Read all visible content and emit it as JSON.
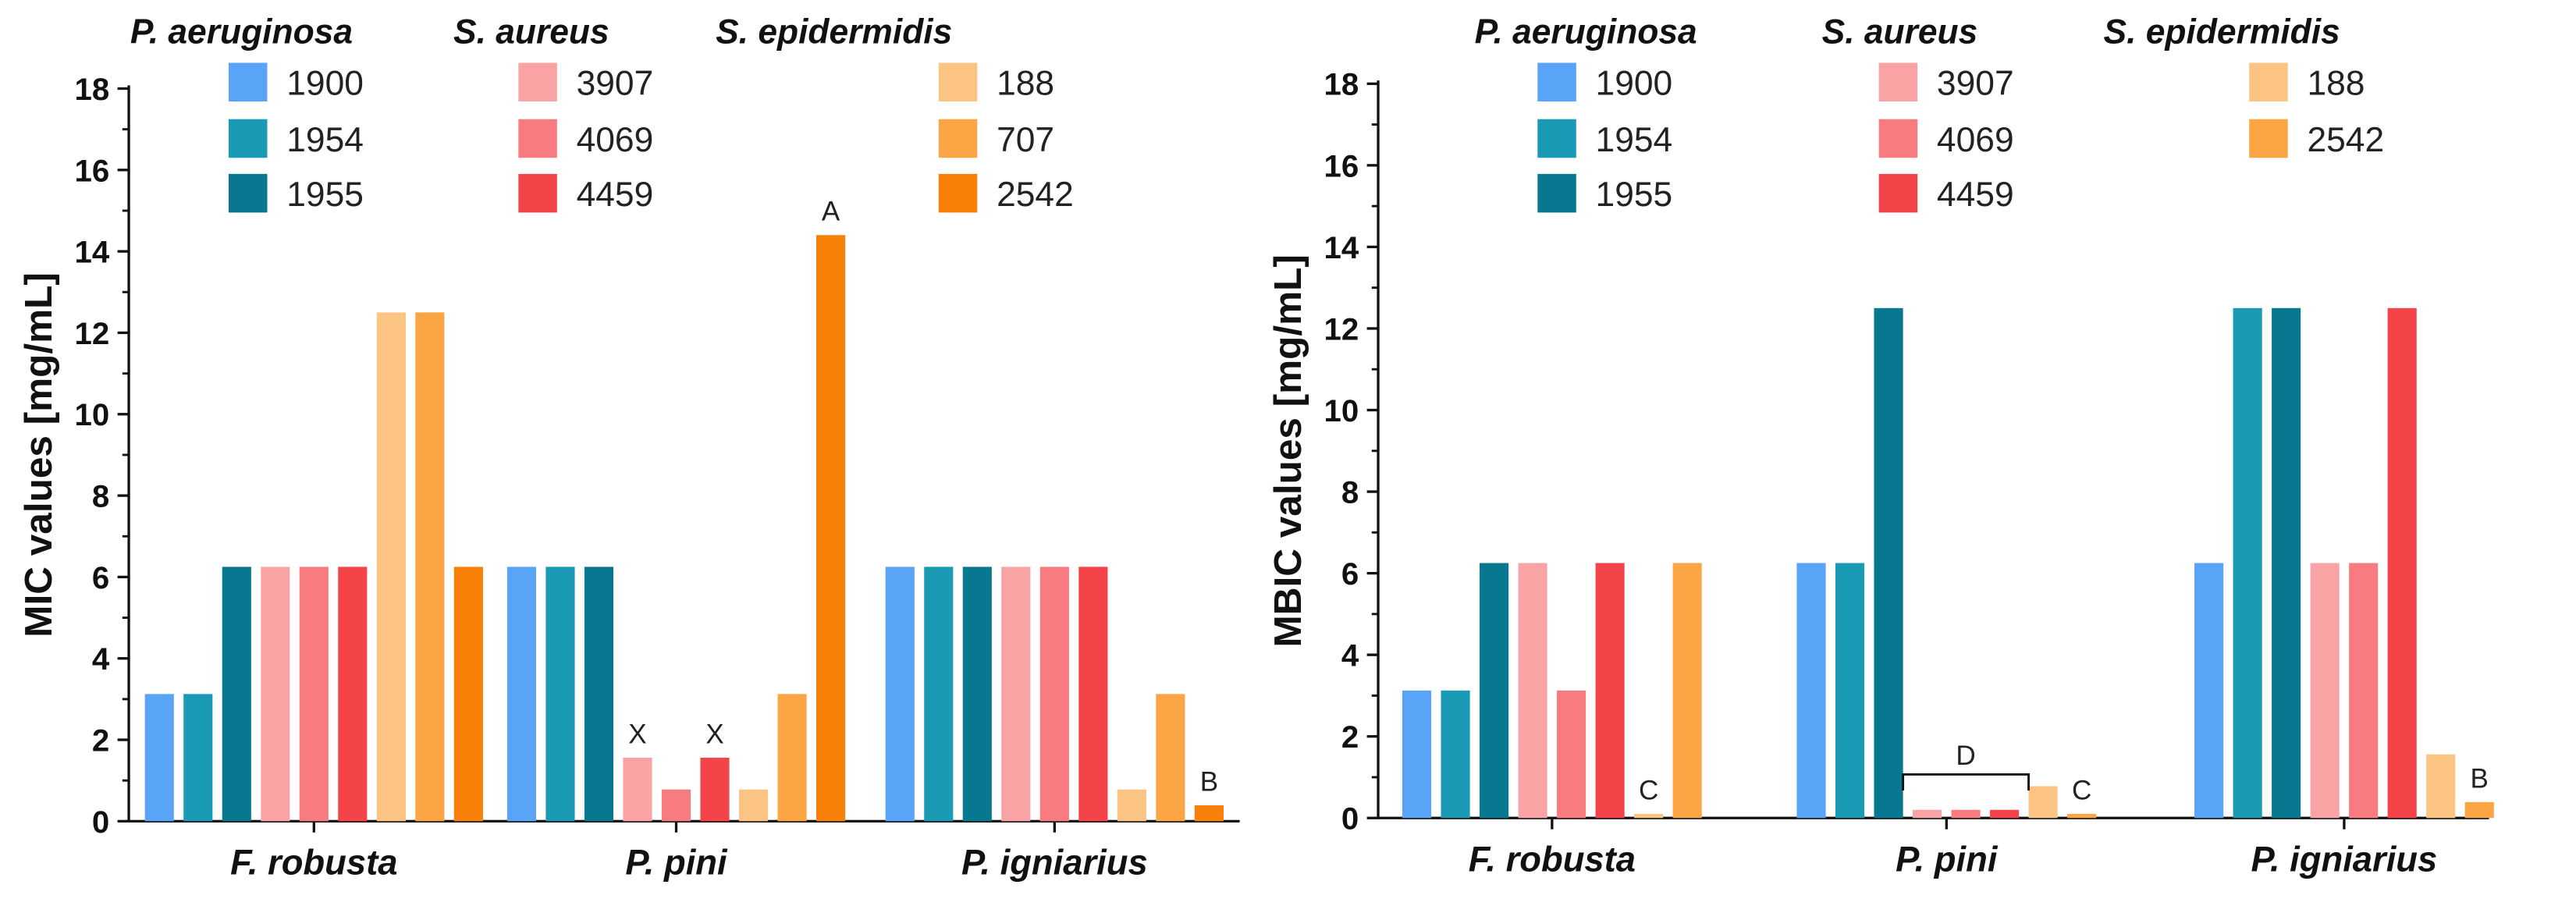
{
  "chart_data": [
    {
      "type": "bar",
      "ylabel": "MIC values [mg/mL]",
      "xlabel": "",
      "ylim": [
        0,
        18
      ],
      "yticks": [
        0,
        2,
        4,
        6,
        8,
        10,
        12,
        14,
        16,
        18
      ],
      "categories": [
        "F. robusta",
        "P. pini",
        "P. igniarius"
      ],
      "series": [
        {
          "name": "1900",
          "group": "P. aeruginosa",
          "color": "#5aa4f7",
          "values": [
            3.125,
            6.25,
            6.25
          ]
        },
        {
          "name": "1954",
          "group": "P. aeruginosa",
          "color": "#1a9ab4",
          "values": [
            3.125,
            6.25,
            6.25
          ]
        },
        {
          "name": "1955",
          "group": "P. aeruginosa",
          "color": "#087890",
          "values": [
            6.25,
            6.25,
            6.25
          ]
        },
        {
          "name": "3907",
          "group": "S. aureus",
          "color": "#f9a3a5",
          "values": [
            6.25,
            1.56,
            6.25
          ]
        },
        {
          "name": "4069",
          "group": "S. aureus",
          "color": "#f77b7f",
          "values": [
            6.25,
            0.78,
            6.25
          ]
        },
        {
          "name": "4459",
          "group": "S. aureus",
          "color": "#f44449",
          "values": [
            6.25,
            1.56,
            6.25
          ]
        },
        {
          "name": "188",
          "group": "S. epidermidis",
          "color": "#fbc482",
          "values": [
            12.5,
            0.78,
            0.78
          ]
        },
        {
          "name": "707",
          "group": "S. epidermidis",
          "color": "#fba544",
          "values": [
            12.5,
            3.125,
            3.125
          ]
        },
        {
          "name": "2542",
          "group": "S. epidermidis",
          "color": "#f98008",
          "values": [
            6.25,
            14.4,
            0.39
          ]
        }
      ],
      "legend_groups": [
        {
          "title": "P. aeruginosa",
          "items": [
            "1900",
            "1954",
            "1955"
          ]
        },
        {
          "title": "S. aureus",
          "items": [
            "3907",
            "4069",
            "4459"
          ]
        },
        {
          "title": "S. epidermidis",
          "items": [
            "188",
            "707",
            "2542"
          ]
        }
      ],
      "annotations": [
        {
          "text": "X",
          "category": "P. pini",
          "series": "3907"
        },
        {
          "text": "X",
          "category": "P. pini",
          "series": "4459"
        },
        {
          "text": "A",
          "category": "P. pini",
          "series": "2542"
        },
        {
          "text": "B",
          "category": "P. igniarius",
          "series": "2542"
        }
      ]
    },
    {
      "type": "bar",
      "ylabel": "MBIC values [mg/mL]",
      "xlabel": "",
      "ylim": [
        0,
        18
      ],
      "yticks": [
        0,
        2,
        4,
        6,
        8,
        10,
        12,
        14,
        16,
        18
      ],
      "categories": [
        "F. robusta",
        "P. pini",
        "P. igniarius"
      ],
      "series": [
        {
          "name": "1900",
          "group": "P. aeruginosa",
          "color": "#5aa4f7",
          "values": [
            3.125,
            6.25,
            6.25
          ]
        },
        {
          "name": "1954",
          "group": "P. aeruginosa",
          "color": "#1a9ab4",
          "values": [
            3.125,
            6.25,
            12.5
          ]
        },
        {
          "name": "1955",
          "group": "P. aeruginosa",
          "color": "#087890",
          "values": [
            6.25,
            12.5,
            12.5
          ]
        },
        {
          "name": "3907",
          "group": "S. aureus",
          "color": "#f9a3a5",
          "values": [
            6.25,
            0.2,
            6.25
          ]
        },
        {
          "name": "4069",
          "group": "S. aureus",
          "color": "#f77b7f",
          "values": [
            3.125,
            0.2,
            6.25
          ]
        },
        {
          "name": "4459",
          "group": "S. aureus",
          "color": "#f44449",
          "values": [
            6.25,
            0.2,
            12.5
          ]
        },
        {
          "name": "188",
          "group": "S. epidermidis",
          "color": "#fbc482",
          "values": [
            0.1,
            0.78,
            1.56
          ]
        },
        {
          "name": "2542",
          "group": "S. epidermidis",
          "color": "#fba544",
          "values": [
            6.25,
            0.1,
            0.39
          ]
        }
      ],
      "legend_groups": [
        {
          "title": "P. aeruginosa",
          "items": [
            "1900",
            "1954",
            "1955"
          ]
        },
        {
          "title": "S. aureus",
          "items": [
            "3907",
            "4069",
            "4459"
          ]
        },
        {
          "title": "S. epidermidis",
          "items": [
            "188",
            "2542"
          ]
        }
      ],
      "annotations": [
        {
          "text": "C",
          "category": "F. robusta",
          "series": "188"
        },
        {
          "text": "D",
          "category": "P. pini",
          "bracket": [
            "3907",
            "4459"
          ]
        },
        {
          "text": "C",
          "category": "P. pini",
          "series": "2542"
        },
        {
          "text": "B",
          "category": "P. igniarius",
          "series": "2542"
        }
      ]
    }
  ]
}
